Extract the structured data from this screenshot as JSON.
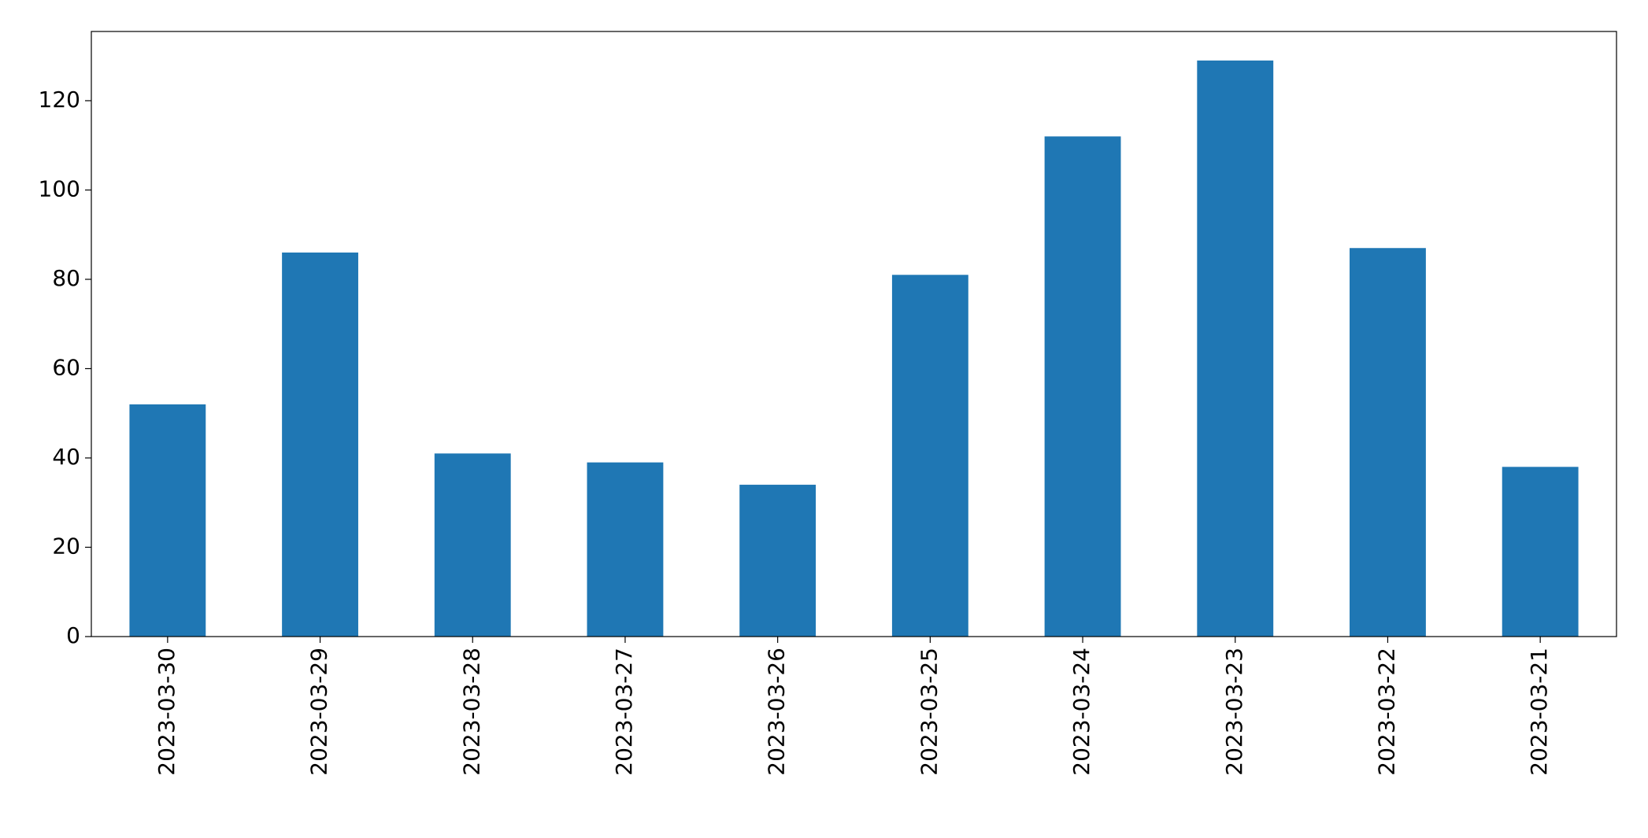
{
  "chart_data": {
    "type": "bar",
    "categories": [
      "2023-03-30",
      "2023-03-29",
      "2023-03-28",
      "2023-03-27",
      "2023-03-26",
      "2023-03-25",
      "2023-03-24",
      "2023-03-23",
      "2023-03-22",
      "2023-03-21"
    ],
    "values": [
      52,
      86,
      41,
      39,
      34,
      81,
      112,
      129,
      87,
      38
    ],
    "color": "#1f77b4",
    "ylim": [
      0,
      135.5
    ],
    "yticks": [
      0,
      20,
      40,
      60,
      80,
      100,
      120
    ],
    "grid": false
  }
}
